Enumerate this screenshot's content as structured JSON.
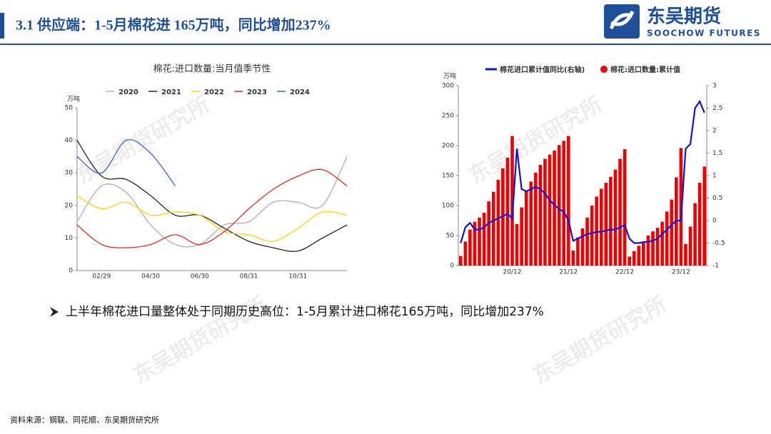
{
  "header": {
    "title": "3.1 供应端：1-5月棉花进 165万吨，同比增加237%",
    "logo_cn": "东吴期货",
    "logo_en": "SOOCHOW FUTURES"
  },
  "watermark": "东吴期货研究所",
  "bullet": "上半年棉花进口量整体处于同期历史高位：1-5月累计进口棉花165万吨，同比增加237%",
  "source": "资料来源：钢联、同花顺、东吴期货研究所",
  "chart_data": [
    {
      "type": "line",
      "title": "棉花:进口数量:当月值季节性",
      "y_unit": "万吨",
      "categories": [
        null,
        "02/29",
        null,
        "04/30",
        null,
        "06/30",
        null,
        "08/31",
        null,
        "10/31",
        null,
        null
      ],
      "ylim": [
        0,
        50
      ],
      "yticks": [
        0,
        10,
        20,
        30,
        40,
        50
      ],
      "series": [
        {
          "name": "2020",
          "color": "#b0b0b0",
          "values": [
            15,
            26,
            24,
            14,
            8,
            8,
            14,
            15,
            21,
            21,
            20,
            35
          ]
        },
        {
          "name": "2021",
          "color": "#222222",
          "values": [
            40,
            29,
            28,
            23,
            17,
            17,
            13,
            9,
            7,
            6,
            10,
            14
          ]
        },
        {
          "name": "2022",
          "color": "#ffd400",
          "values": [
            23,
            19,
            21,
            17,
            18,
            17,
            12,
            11,
            9,
            13,
            18,
            17
          ]
        },
        {
          "name": "2023",
          "color": "#e8281e",
          "values": [
            14,
            8,
            7,
            8,
            11,
            8,
            12,
            19,
            25,
            29,
            31,
            26
          ]
        },
        {
          "name": "2024",
          "color": "#3a66d8",
          "values": [
            35,
            30,
            40,
            36,
            26,
            null,
            null,
            null,
            null,
            null,
            null,
            null
          ]
        }
      ]
    },
    {
      "type": "bar",
      "y_unit": "万吨",
      "categories": [
        null,
        null,
        null,
        null,
        null,
        null,
        null,
        null,
        null,
        null,
        null,
        "20/12",
        null,
        null,
        null,
        null,
        null,
        null,
        null,
        null,
        null,
        null,
        null,
        "21/12",
        null,
        null,
        null,
        null,
        null,
        null,
        null,
        null,
        null,
        null,
        null,
        "22/12",
        null,
        null,
        null,
        null,
        null,
        null,
        null,
        null,
        null,
        null,
        null,
        "23/12",
        null,
        null,
        null,
        null,
        null
      ],
      "ylim": [
        0,
        300
      ],
      "yticks": [
        0,
        50,
        100,
        150,
        200,
        250,
        300
      ],
      "y2lim": [
        -1,
        3
      ],
      "y2ticks": [
        -1,
        -0.5,
        0,
        0.5,
        1,
        1.5,
        2,
        2.5,
        3
      ],
      "series": [
        {
          "name": "棉花进口累计值同比(右轴)",
          "color": "#1010e0",
          "axis": "y2",
          "values": [
            -0.5,
            -0.15,
            -0.05,
            -0.2,
            -0.2,
            -0.15,
            -0.05,
            0.0,
            0.05,
            0.1,
            0.15,
            0.05,
            1.6,
            0.7,
            0.65,
            0.7,
            0.75,
            0.7,
            0.6,
            0.45,
            0.35,
            0.25,
            0.2,
            0.0,
            -0.45,
            -0.4,
            -0.35,
            -0.3,
            -0.28,
            -0.25,
            -0.25,
            -0.22,
            -0.2,
            -0.2,
            -0.15,
            -0.1,
            -0.4,
            -0.5,
            -0.5,
            -0.48,
            -0.47,
            -0.45,
            -0.4,
            -0.3,
            -0.2,
            -0.1,
            0.0,
            0.0,
            1.6,
            1.7,
            2.5,
            2.65,
            2.4
          ]
        },
        {
          "name": "棉花:进口数量:累计值",
          "color": "#ee0000",
          "values": [
            16,
            40,
            60,
            73,
            80,
            88,
            107,
            123,
            143,
            162,
            180,
            216,
            69,
            97,
            125,
            140,
            155,
            168,
            178,
            185,
            192,
            201,
            208,
            216,
            25,
            47,
            62,
            80,
            100,
            115,
            128,
            138,
            148,
            160,
            178,
            194,
            15,
            24,
            33,
            40,
            50,
            57,
            63,
            73,
            90,
            110,
            147,
            196,
            36,
            65,
            104,
            138,
            165
          ]
        }
      ]
    }
  ]
}
